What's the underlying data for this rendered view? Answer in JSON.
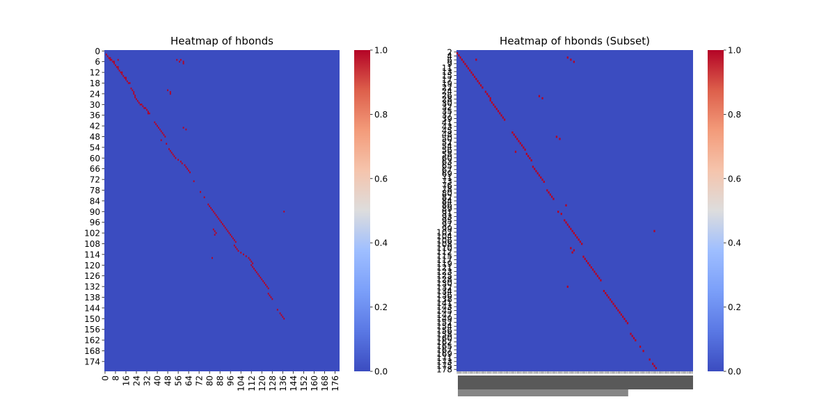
{
  "chart_data": [
    {
      "type": "heatmap",
      "title": "Heatmap of hbonds",
      "xlabel": "",
      "ylabel": "",
      "x_ticks": [
        "0",
        "8",
        "16",
        "24",
        "32",
        "40",
        "48",
        "56",
        "64",
        "72",
        "80",
        "88",
        "96",
        "104",
        "112",
        "120",
        "128",
        "136",
        "144",
        "152",
        "160",
        "168",
        "176"
      ],
      "y_ticks": [
        "0",
        "6",
        "12",
        "18",
        "24",
        "30",
        "36",
        "42",
        "48",
        "54",
        "60",
        "66",
        "72",
        "78",
        "84",
        "90",
        "96",
        "102",
        "108",
        "114",
        "120",
        "126",
        "132",
        "138",
        "144",
        "150",
        "156",
        "162",
        "168",
        "174"
      ],
      "n_rows": 180,
      "n_cols": 180,
      "colormap": "coolwarm",
      "colorbar": {
        "min": 0.0,
        "max": 1.0,
        "ticks": [
          "0.0",
          "0.2",
          "0.4",
          "0.6",
          "0.8",
          "1.0"
        ]
      },
      "hot_cells": [
        [
          2,
          1
        ],
        [
          3,
          2
        ],
        [
          4,
          3
        ],
        [
          4,
          4
        ],
        [
          5,
          4
        ],
        [
          5,
          5
        ],
        [
          6,
          6
        ],
        [
          6,
          7
        ],
        [
          7,
          7
        ],
        [
          8,
          8
        ],
        [
          9,
          9
        ],
        [
          9,
          10
        ],
        [
          10,
          10
        ],
        [
          11,
          11
        ],
        [
          12,
          12
        ],
        [
          12,
          13
        ],
        [
          13,
          13
        ],
        [
          14,
          14
        ],
        [
          15,
          15
        ],
        [
          15,
          16
        ],
        [
          16,
          16
        ],
        [
          17,
          17
        ],
        [
          18,
          18
        ],
        [
          18,
          19
        ],
        [
          5,
          10
        ],
        [
          5,
          55
        ],
        [
          5,
          58
        ],
        [
          6,
          57
        ],
        [
          6,
          60
        ],
        [
          7,
          60
        ],
        [
          21,
          20
        ],
        [
          22,
          21
        ],
        [
          23,
          22
        ],
        [
          24,
          22
        ],
        [
          25,
          23
        ],
        [
          26,
          23
        ],
        [
          27,
          24
        ],
        [
          28,
          25
        ],
        [
          29,
          26
        ],
        [
          30,
          27
        ],
        [
          30,
          28
        ],
        [
          31,
          29
        ],
        [
          32,
          30
        ],
        [
          32,
          31
        ],
        [
          33,
          32
        ],
        [
          34,
          33
        ],
        [
          35,
          33
        ],
        [
          35,
          34
        ],
        [
          22,
          48
        ],
        [
          23,
          50
        ],
        [
          24,
          50
        ],
        [
          40,
          38
        ],
        [
          41,
          39
        ],
        [
          42,
          40
        ],
        [
          43,
          41
        ],
        [
          44,
          42
        ],
        [
          45,
          43
        ],
        [
          46,
          44
        ],
        [
          47,
          45
        ],
        [
          48,
          46
        ],
        [
          43,
          60
        ],
        [
          44,
          62
        ],
        [
          50,
          43
        ],
        [
          52,
          47
        ],
        [
          55,
          49
        ],
        [
          56,
          50
        ],
        [
          57,
          51
        ],
        [
          58,
          52
        ],
        [
          59,
          53
        ],
        [
          60,
          54
        ],
        [
          61,
          56
        ],
        [
          62,
          58
        ],
        [
          63,
          59
        ],
        [
          64,
          61
        ],
        [
          65,
          62
        ],
        [
          66,
          63
        ],
        [
          67,
          64
        ],
        [
          68,
          65
        ],
        [
          73,
          68
        ],
        [
          79,
          73
        ],
        [
          82,
          76
        ],
        [
          86,
          79
        ],
        [
          87,
          80
        ],
        [
          88,
          81
        ],
        [
          89,
          82
        ],
        [
          90,
          83
        ],
        [
          91,
          84
        ],
        [
          92,
          85
        ],
        [
          93,
          86
        ],
        [
          94,
          87
        ],
        [
          95,
          88
        ],
        [
          96,
          89
        ],
        [
          97,
          90
        ],
        [
          98,
          91
        ],
        [
          99,
          92
        ],
        [
          100,
          93
        ],
        [
          101,
          94
        ],
        [
          102,
          95
        ],
        [
          103,
          96
        ],
        [
          104,
          97
        ],
        [
          105,
          98
        ],
        [
          106,
          99
        ],
        [
          107,
          100
        ],
        [
          100,
          83
        ],
        [
          101,
          84
        ],
        [
          102,
          85
        ],
        [
          103,
          84
        ],
        [
          90,
          137
        ],
        [
          109,
          99
        ],
        [
          110,
          100
        ],
        [
          111,
          101
        ],
        [
          112,
          102
        ],
        [
          113,
          104
        ],
        [
          114,
          106
        ],
        [
          115,
          108
        ],
        [
          116,
          110
        ],
        [
          117,
          111
        ],
        [
          118,
          112
        ],
        [
          119,
          113
        ],
        [
          116,
          82
        ],
        [
          120,
          112
        ],
        [
          121,
          113
        ],
        [
          122,
          114
        ],
        [
          123,
          115
        ],
        [
          124,
          116
        ],
        [
          125,
          117
        ],
        [
          126,
          118
        ],
        [
          127,
          119
        ],
        [
          128,
          120
        ],
        [
          129,
          121
        ],
        [
          130,
          122
        ],
        [
          131,
          123
        ],
        [
          132,
          124
        ],
        [
          133,
          125
        ],
        [
          136,
          125
        ],
        [
          137,
          126
        ],
        [
          138,
          127
        ],
        [
          139,
          128
        ],
        [
          145,
          132
        ],
        [
          147,
          134
        ],
        [
          148,
          135
        ],
        [
          149,
          136
        ],
        [
          150,
          137
        ]
      ]
    },
    {
      "type": "heatmap",
      "title": "Heatmap of hbonds (Subset)",
      "xlabel": "",
      "ylabel": "",
      "x_ticks": [],
      "y_ticks": [
        "2",
        "4",
        "6",
        "9",
        "11",
        "13",
        "15",
        "17",
        "19",
        "22",
        "24",
        "26",
        "28",
        "30",
        "32",
        "35",
        "37",
        "39",
        "41",
        "43",
        "45",
        "48",
        "50",
        "52",
        "54",
        "56",
        "58",
        "60",
        "63",
        "65",
        "67",
        "69",
        "71",
        "73",
        "76",
        "78",
        "80",
        "82",
        "84",
        "86",
        "89",
        "91",
        "93",
        "95",
        "97",
        "99",
        "102",
        "104",
        "106",
        "108",
        "110",
        "112",
        "115",
        "117",
        "119",
        "121",
        "123",
        "125",
        "128",
        "130",
        "132",
        "134",
        "136",
        "138",
        "141",
        "143",
        "145",
        "147",
        "149",
        "152",
        "154",
        "156",
        "158",
        "160",
        "162",
        "165",
        "167",
        "169",
        "171",
        "173",
        "175",
        "178"
      ],
      "n_rows": 150,
      "n_cols": 150,
      "colormap": "coolwarm",
      "colorbar": {
        "min": 0.0,
        "max": 1.0,
        "ticks": [
          "0.0",
          "0.2",
          "0.4",
          "0.6",
          "0.8",
          "1.0"
        ]
      },
      "hot_cells": [
        [
          1,
          0
        ],
        [
          2,
          1
        ],
        [
          3,
          2
        ],
        [
          4,
          3
        ],
        [
          5,
          4
        ],
        [
          6,
          5
        ],
        [
          7,
          6
        ],
        [
          8,
          7
        ],
        [
          9,
          8
        ],
        [
          10,
          9
        ],
        [
          11,
          10
        ],
        [
          12,
          11
        ],
        [
          13,
          12
        ],
        [
          14,
          13
        ],
        [
          15,
          14
        ],
        [
          16,
          15
        ],
        [
          17,
          16
        ],
        [
          4,
          12
        ],
        [
          3,
          70
        ],
        [
          4,
          72
        ],
        [
          5,
          74
        ],
        [
          19,
          18
        ],
        [
          20,
          19
        ],
        [
          21,
          20
        ],
        [
          22,
          21
        ],
        [
          23,
          21
        ],
        [
          24,
          22
        ],
        [
          25,
          23
        ],
        [
          26,
          24
        ],
        [
          27,
          25
        ],
        [
          28,
          26
        ],
        [
          29,
          27
        ],
        [
          30,
          28
        ],
        [
          31,
          29
        ],
        [
          32,
          30
        ],
        [
          21,
          52
        ],
        [
          22,
          54
        ],
        [
          38,
          35
        ],
        [
          39,
          36
        ],
        [
          40,
          37
        ],
        [
          41,
          38
        ],
        [
          42,
          39
        ],
        [
          43,
          40
        ],
        [
          44,
          41
        ],
        [
          45,
          42
        ],
        [
          46,
          43
        ],
        [
          48,
          44
        ],
        [
          49,
          45
        ],
        [
          50,
          46
        ],
        [
          51,
          47
        ],
        [
          40,
          63
        ],
        [
          41,
          65
        ],
        [
          47,
          37
        ],
        [
          54,
          48
        ],
        [
          55,
          49
        ],
        [
          56,
          50
        ],
        [
          57,
          51
        ],
        [
          58,
          52
        ],
        [
          59,
          53
        ],
        [
          60,
          54
        ],
        [
          61,
          55
        ],
        [
          65,
          57
        ],
        [
          66,
          58
        ],
        [
          67,
          59
        ],
        [
          68,
          60
        ],
        [
          69,
          61
        ],
        [
          72,
          69
        ],
        [
          75,
          64
        ],
        [
          76,
          66
        ],
        [
          79,
          68
        ],
        [
          80,
          69
        ],
        [
          81,
          70
        ],
        [
          82,
          71
        ],
        [
          83,
          72
        ],
        [
          84,
          73
        ],
        [
          85,
          74
        ],
        [
          86,
          75
        ],
        [
          87,
          76
        ],
        [
          88,
          77
        ],
        [
          89,
          78
        ],
        [
          90,
          79
        ],
        [
          84,
          125
        ],
        [
          92,
          72
        ],
        [
          93,
          74
        ],
        [
          94,
          73
        ],
        [
          96,
          80
        ],
        [
          97,
          81
        ],
        [
          98,
          82
        ],
        [
          99,
          83
        ],
        [
          100,
          84
        ],
        [
          101,
          85
        ],
        [
          102,
          86
        ],
        [
          103,
          87
        ],
        [
          104,
          88
        ],
        [
          105,
          89
        ],
        [
          106,
          90
        ],
        [
          107,
          91
        ],
        [
          110,
          70
        ],
        [
          112,
          93
        ],
        [
          113,
          94
        ],
        [
          114,
          95
        ],
        [
          115,
          96
        ],
        [
          116,
          97
        ],
        [
          117,
          98
        ],
        [
          118,
          99
        ],
        [
          119,
          100
        ],
        [
          120,
          101
        ],
        [
          121,
          102
        ],
        [
          122,
          103
        ],
        [
          123,
          104
        ],
        [
          124,
          105
        ],
        [
          125,
          106
        ],
        [
          126,
          107
        ],
        [
          127,
          108
        ],
        [
          132,
          110
        ],
        [
          133,
          111
        ],
        [
          134,
          112
        ],
        [
          135,
          113
        ],
        [
          138,
          116
        ],
        [
          140,
          118
        ],
        [
          144,
          122
        ],
        [
          146,
          124
        ],
        [
          147,
          125
        ],
        [
          148,
          126
        ]
      ]
    }
  ]
}
